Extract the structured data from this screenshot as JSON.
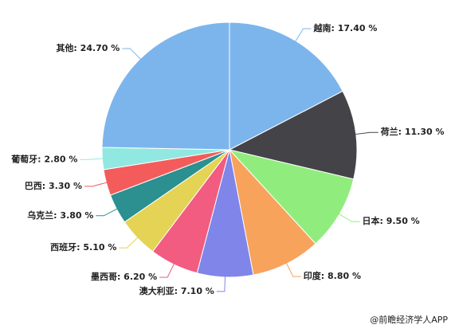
{
  "chart_data": {
    "type": "pie",
    "value_labels": [
      "越南: 17.40 %",
      "荷兰: 11.30 %",
      "日本: 9.50 %",
      "印度: 8.80 %",
      "澳大利亚: 7.10 %",
      "墨西哥: 6.20 %",
      "西班牙: 5.10 %",
      "乌克兰: 3.80 %",
      "巴西: 3.30 %",
      "葡萄牙: 2.80 %",
      "其他: 24.70 %"
    ],
    "values": [
      17.4,
      11.3,
      9.5,
      8.8,
      7.1,
      6.2,
      5.1,
      3.8,
      3.3,
      2.8,
      24.7
    ],
    "colors": [
      "#7cb5ec",
      "#434348",
      "#90ed7d",
      "#f7a35c",
      "#8085e9",
      "#f15c80",
      "#e4d354",
      "#2b908f",
      "#f45b5b",
      "#91e8e1",
      "#7cb5ec"
    ],
    "source": "@前瞻经济学人APP"
  }
}
